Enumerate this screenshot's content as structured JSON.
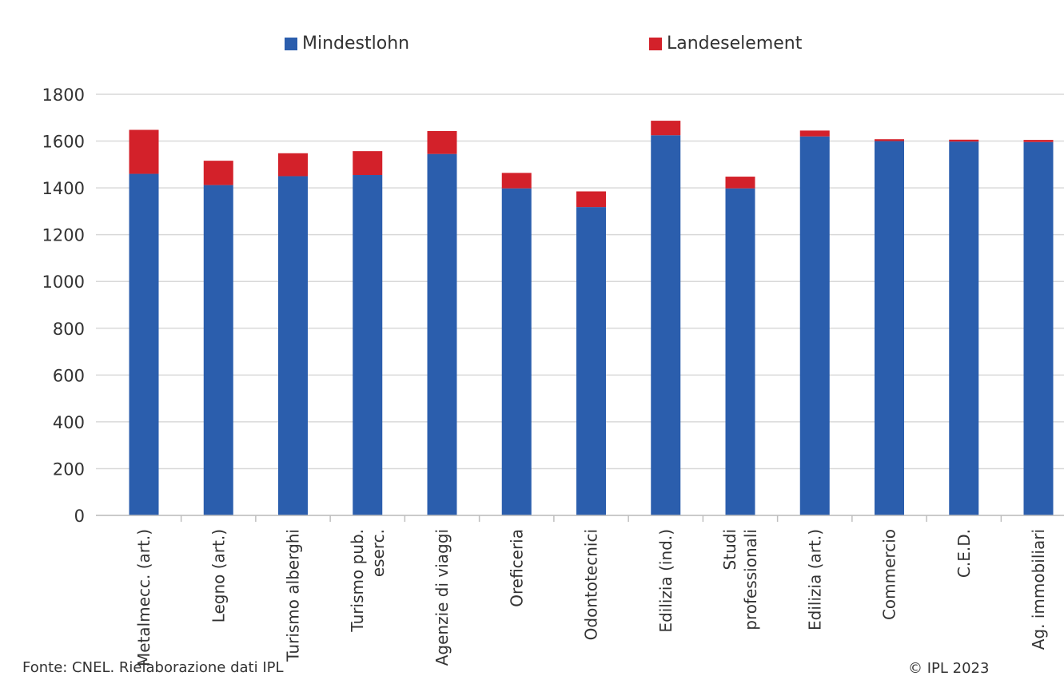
{
  "colors": {
    "mindestlohn": "#2b5ead",
    "landeselement": "#d3212a",
    "grid": "#d9d9d9",
    "text": "#333333"
  },
  "legend": {
    "mindestlohn": "Mindestlohn",
    "landeselement": "Landeselement"
  },
  "footer": {
    "source": "Fonte: CNEL. Rielaborazione dati IPL",
    "copyright": "© IPL 2023"
  },
  "chart_data": {
    "type": "bar",
    "stacked": true,
    "categories": [
      [
        "Metalmecc. (art.)"
      ],
      [
        "Legno (art.)"
      ],
      [
        "Turismo alberghi"
      ],
      [
        "Turismo pub.",
        "eserc."
      ],
      [
        "Agenzie di viaggi"
      ],
      [
        "Oreficeria"
      ],
      [
        "Odontotecnici"
      ],
      [
        "Edilizia (ind.)"
      ],
      [
        "Studi",
        "professionali"
      ],
      [
        "Edilizia (art.)"
      ],
      [
        "Commercio"
      ],
      [
        "C.E.D."
      ],
      [
        "Ag. immobiliari"
      ]
    ],
    "series": [
      {
        "name": "Mindestlohn",
        "values": [
          1460,
          1412,
          1450,
          1455,
          1545,
          1398,
          1318,
          1625,
          1398,
          1620,
          1600,
          1598,
          1596
        ]
      },
      {
        "name": "Landeselement",
        "values": [
          188,
          104,
          98,
          102,
          98,
          66,
          67,
          62,
          50,
          25,
          8,
          8,
          9
        ]
      }
    ],
    "ylim": [
      0,
      1800
    ],
    "yticks": [
      0,
      200,
      400,
      600,
      800,
      1000,
      1200,
      1400,
      1600,
      1800
    ],
    "grid": true,
    "legend_position": "top"
  }
}
